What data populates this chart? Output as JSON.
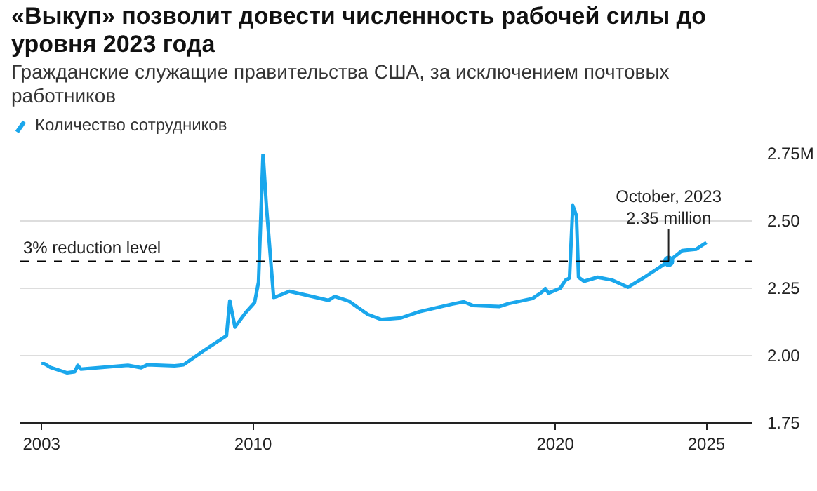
{
  "chart_data": {
    "type": "line",
    "title": "«Выкуп» позволит довести численность рабочей силы до уровня 2023 года",
    "subtitle": "Гражданские служащие правительства США, за исключением почтовых работников",
    "x": [
      2003.0,
      2003.1,
      2003.3,
      2003.85,
      2004.1,
      2004.2,
      2004.3,
      2005.86,
      2006.3,
      2006.5,
      2007.4,
      2007.7,
      2008.35,
      2009.12,
      2009.23,
      2009.4,
      2009.75,
      2010.05,
      2010.18,
      2010.33,
      2010.44,
      2010.68,
      2010.8,
      2011.2,
      2012.08,
      2012.5,
      2012.7,
      2013.16,
      2013.8,
      2014.25,
      2014.9,
      2015.5,
      2016.58,
      2016.97,
      2017.28,
      2018.14,
      2018.45,
      2019.24,
      2019.55,
      2019.67,
      2019.78,
      2020.16,
      2020.34,
      2020.47,
      2020.58,
      2020.7,
      2020.77,
      2020.95,
      2021.4,
      2021.87,
      2022.41,
      2022.95,
      2023.75,
      2024.2,
      2024.66,
      2025.0
    ],
    "series": [
      {
        "name": "Количество сотрудников",
        "color": "#1aa7ec",
        "values": [
          1.97,
          1.97,
          1.956,
          1.936,
          1.94,
          1.964,
          1.95,
          1.964,
          1.955,
          1.966,
          1.962,
          1.966,
          2.017,
          2.074,
          2.203,
          2.106,
          2.159,
          2.197,
          2.273,
          2.75,
          2.557,
          2.216,
          2.22,
          2.239,
          2.216,
          2.205,
          2.22,
          2.203,
          2.153,
          2.134,
          2.14,
          2.163,
          2.191,
          2.2,
          2.186,
          2.182,
          2.193,
          2.212,
          2.235,
          2.249,
          2.232,
          2.25,
          2.28,
          2.288,
          2.557,
          2.519,
          2.291,
          2.276,
          2.291,
          2.281,
          2.254,
          2.291,
          2.35,
          2.39,
          2.395,
          2.42
        ]
      }
    ],
    "xlim": [
      2002.3,
      2026.5
    ],
    "xticks": [
      2003,
      2010,
      2020,
      2025
    ],
    "ylim": [
      1.75,
      2.75
    ],
    "yticks": [
      1.75,
      {
        "value": 2.0,
        "label": "2.00"
      },
      2.25,
      {
        "value": 2.5,
        "label": "2.50"
      },
      {
        "value": 2.75,
        "label": "2.75M"
      }
    ],
    "ref_lines": [
      {
        "axis": "y",
        "value": 2.35,
        "label": "3% reduction level",
        "color": "#000000",
        "line_style": "dashed"
      }
    ],
    "annotations": [
      {
        "text": "October, 2023\n2.35 million",
        "x": 2023.75,
        "y": 2.35
      }
    ],
    "grid": "y",
    "legend": "top left",
    "marker": "none",
    "line_style": "solid"
  }
}
